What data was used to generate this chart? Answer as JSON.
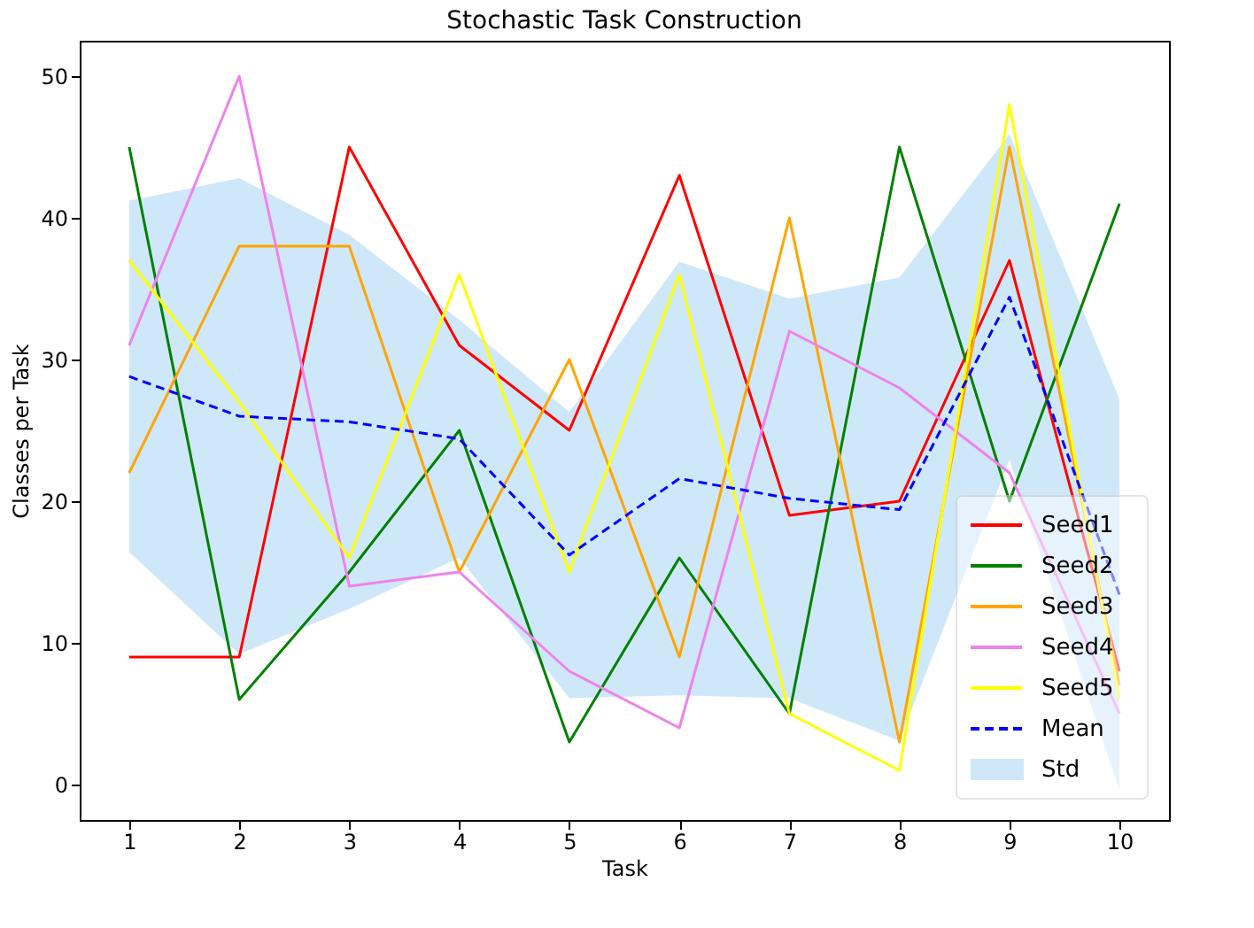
{
  "chart_data": {
    "type": "line",
    "title": "Stochastic Task Construction",
    "xlabel": "Task",
    "ylabel": "Classes per Task",
    "x": [
      1,
      2,
      3,
      4,
      5,
      6,
      7,
      8,
      9,
      10
    ],
    "xlim": [
      0.55,
      10.45
    ],
    "xticks": [
      1,
      2,
      3,
      4,
      5,
      6,
      7,
      8,
      9,
      10
    ],
    "ylim": [
      -2.5,
      52.5
    ],
    "yticks": [
      0,
      10,
      20,
      30,
      40,
      50
    ],
    "grid": false,
    "legend": "bottom right",
    "marker": "none",
    "series": [
      {
        "name": "Seed1",
        "color": "#ff0000",
        "line_style": "solid",
        "values": [
          9,
          9,
          45,
          31,
          25,
          43,
          19,
          20,
          37,
          8
        ]
      },
      {
        "name": "Seed2",
        "color": "#008000",
        "line_style": "solid",
        "values": [
          45,
          6,
          15,
          25,
          3,
          16,
          5,
          45,
          20,
          41
        ]
      },
      {
        "name": "Seed3",
        "color": "#ffa500",
        "line_style": "solid",
        "values": [
          22,
          38,
          38,
          15,
          30,
          9,
          40,
          3,
          45,
          7
        ]
      },
      {
        "name": "Seed4",
        "color": "#ee82ee",
        "line_style": "solid",
        "values": [
          31,
          50,
          14,
          15,
          8,
          4,
          32,
          28,
          22,
          5
        ]
      },
      {
        "name": "Seed5",
        "color": "#ffff00",
        "line_style": "solid",
        "values": [
          37,
          27,
          16,
          36,
          15,
          36,
          5,
          1,
          48,
          6
        ]
      },
      {
        "name": "Mean",
        "color": "#0000ff",
        "line_style": "dashed",
        "values": [
          28.8,
          26.0,
          25.6,
          24.4,
          16.2,
          21.6,
          20.2,
          19.4,
          34.4,
          13.4
        ]
      },
      {
        "name": "Std",
        "type": "area",
        "color": "#cfe8f9",
        "values": [
          null,
          null,
          null,
          null,
          null,
          null,
          null,
          null,
          null,
          null
        ],
        "lower": [
          16.4,
          9.2,
          12.4,
          16.0,
          6.1,
          6.3,
          6.1,
          3.1,
          22.9,
          -0.4
        ],
        "upper": [
          41.2,
          42.8,
          38.8,
          32.8,
          26.3,
          36.9,
          34.3,
          35.8,
          45.9,
          27.2
        ]
      }
    ]
  }
}
